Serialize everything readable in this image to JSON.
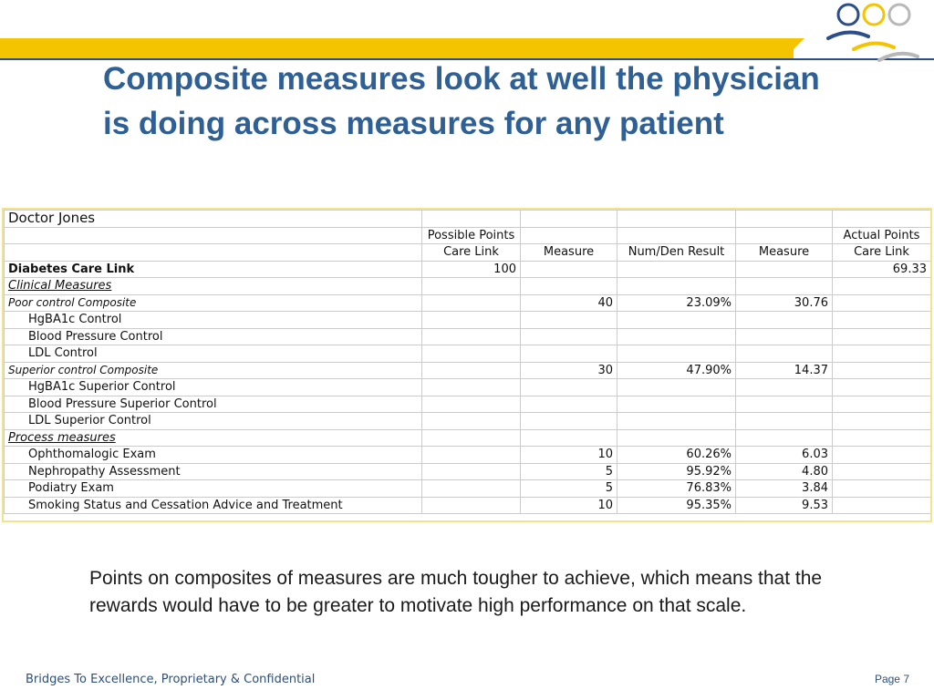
{
  "title": "Composite measures look at well the physician is doing across measures for any patient",
  "table": {
    "doctor": "Doctor Jones",
    "header_row1": [
      "",
      "Possible Points",
      "",
      "",
      "",
      "Actual Points"
    ],
    "header_row2": [
      "",
      "Care Link",
      "Measure",
      "Num/Den Result",
      "Measure",
      "Care Link"
    ],
    "rows": [
      {
        "label": "Diabetes Care Link",
        "style": "bold",
        "cells": [
          "100",
          "",
          "",
          "",
          "69.33"
        ]
      },
      {
        "label": "Clinical Measures",
        "style": "section",
        "cells": [
          "",
          "",
          "",
          "",
          ""
        ]
      },
      {
        "label": "Poor control Composite",
        "style": "composite",
        "cells": [
          "",
          "40",
          "23.09%",
          "30.76",
          ""
        ]
      },
      {
        "label": "HgBA1c Control",
        "style": "indent",
        "cells": [
          "",
          "",
          "",
          "",
          ""
        ]
      },
      {
        "label": "Blood Pressure Control",
        "style": "indent",
        "cells": [
          "",
          "",
          "",
          "",
          ""
        ]
      },
      {
        "label": "LDL Control",
        "style": "indent",
        "cells": [
          "",
          "",
          "",
          "",
          ""
        ]
      },
      {
        "label": "Superior control Composite",
        "style": "composite",
        "cells": [
          "",
          "30",
          "47.90%",
          "14.37",
          ""
        ]
      },
      {
        "label": "HgBA1c Superior Control",
        "style": "indent",
        "cells": [
          "",
          "",
          "",
          "",
          ""
        ]
      },
      {
        "label": "Blood Pressure Superior Control",
        "style": "indent",
        "cells": [
          "",
          "",
          "",
          "",
          ""
        ]
      },
      {
        "label": "LDL Superior Control",
        "style": "indent",
        "cells": [
          "",
          "",
          "",
          "",
          ""
        ]
      },
      {
        "label": "Process measures",
        "style": "section",
        "cells": [
          "",
          "",
          "",
          "",
          ""
        ]
      },
      {
        "label": "Ophthomalogic Exam",
        "style": "indent",
        "cells": [
          "",
          "10",
          "60.26%",
          "6.03",
          ""
        ]
      },
      {
        "label": "Nephropathy Assessment",
        "style": "indent",
        "cells": [
          "",
          "5",
          "95.92%",
          "4.80",
          ""
        ]
      },
      {
        "label": "Podiatry Exam",
        "style": "indent",
        "cells": [
          "",
          "5",
          "76.83%",
          "3.84",
          ""
        ]
      },
      {
        "label": "Smoking Status and Cessation Advice and Treatment",
        "style": "indent",
        "cells": [
          "",
          "10",
          "95.35%",
          "9.53",
          ""
        ]
      }
    ]
  },
  "body_text": "Points on composites of measures are much tougher to achieve, which means that the rewards would have to be greater to motivate high performance on that scale.",
  "footer": {
    "left": "Bridges To Excellence, Proprietary & Confidential",
    "right": "Page 7"
  },
  "colors": {
    "accent_bar": "#f5c400",
    "title": "#2e5f95",
    "logo_blue": "#2b4d8a"
  },
  "icons": [
    "people-logo-icon"
  ]
}
